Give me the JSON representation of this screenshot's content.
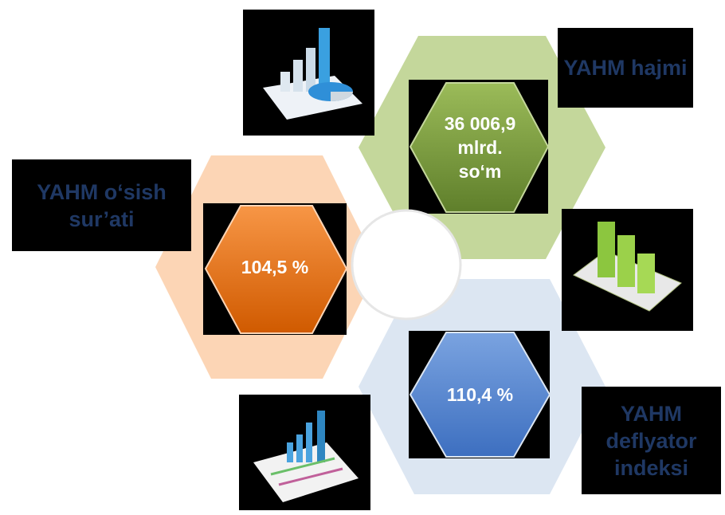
{
  "items": [
    {
      "label": "YAHM hajmi",
      "value": "36 006,9 mlrd. so‘m"
    },
    {
      "label": "YAHM o‘sish sur’ati",
      "value": "104,5 %"
    },
    {
      "label": "YAHM deflyator indeksi",
      "value": "110,4 %"
    }
  ]
}
